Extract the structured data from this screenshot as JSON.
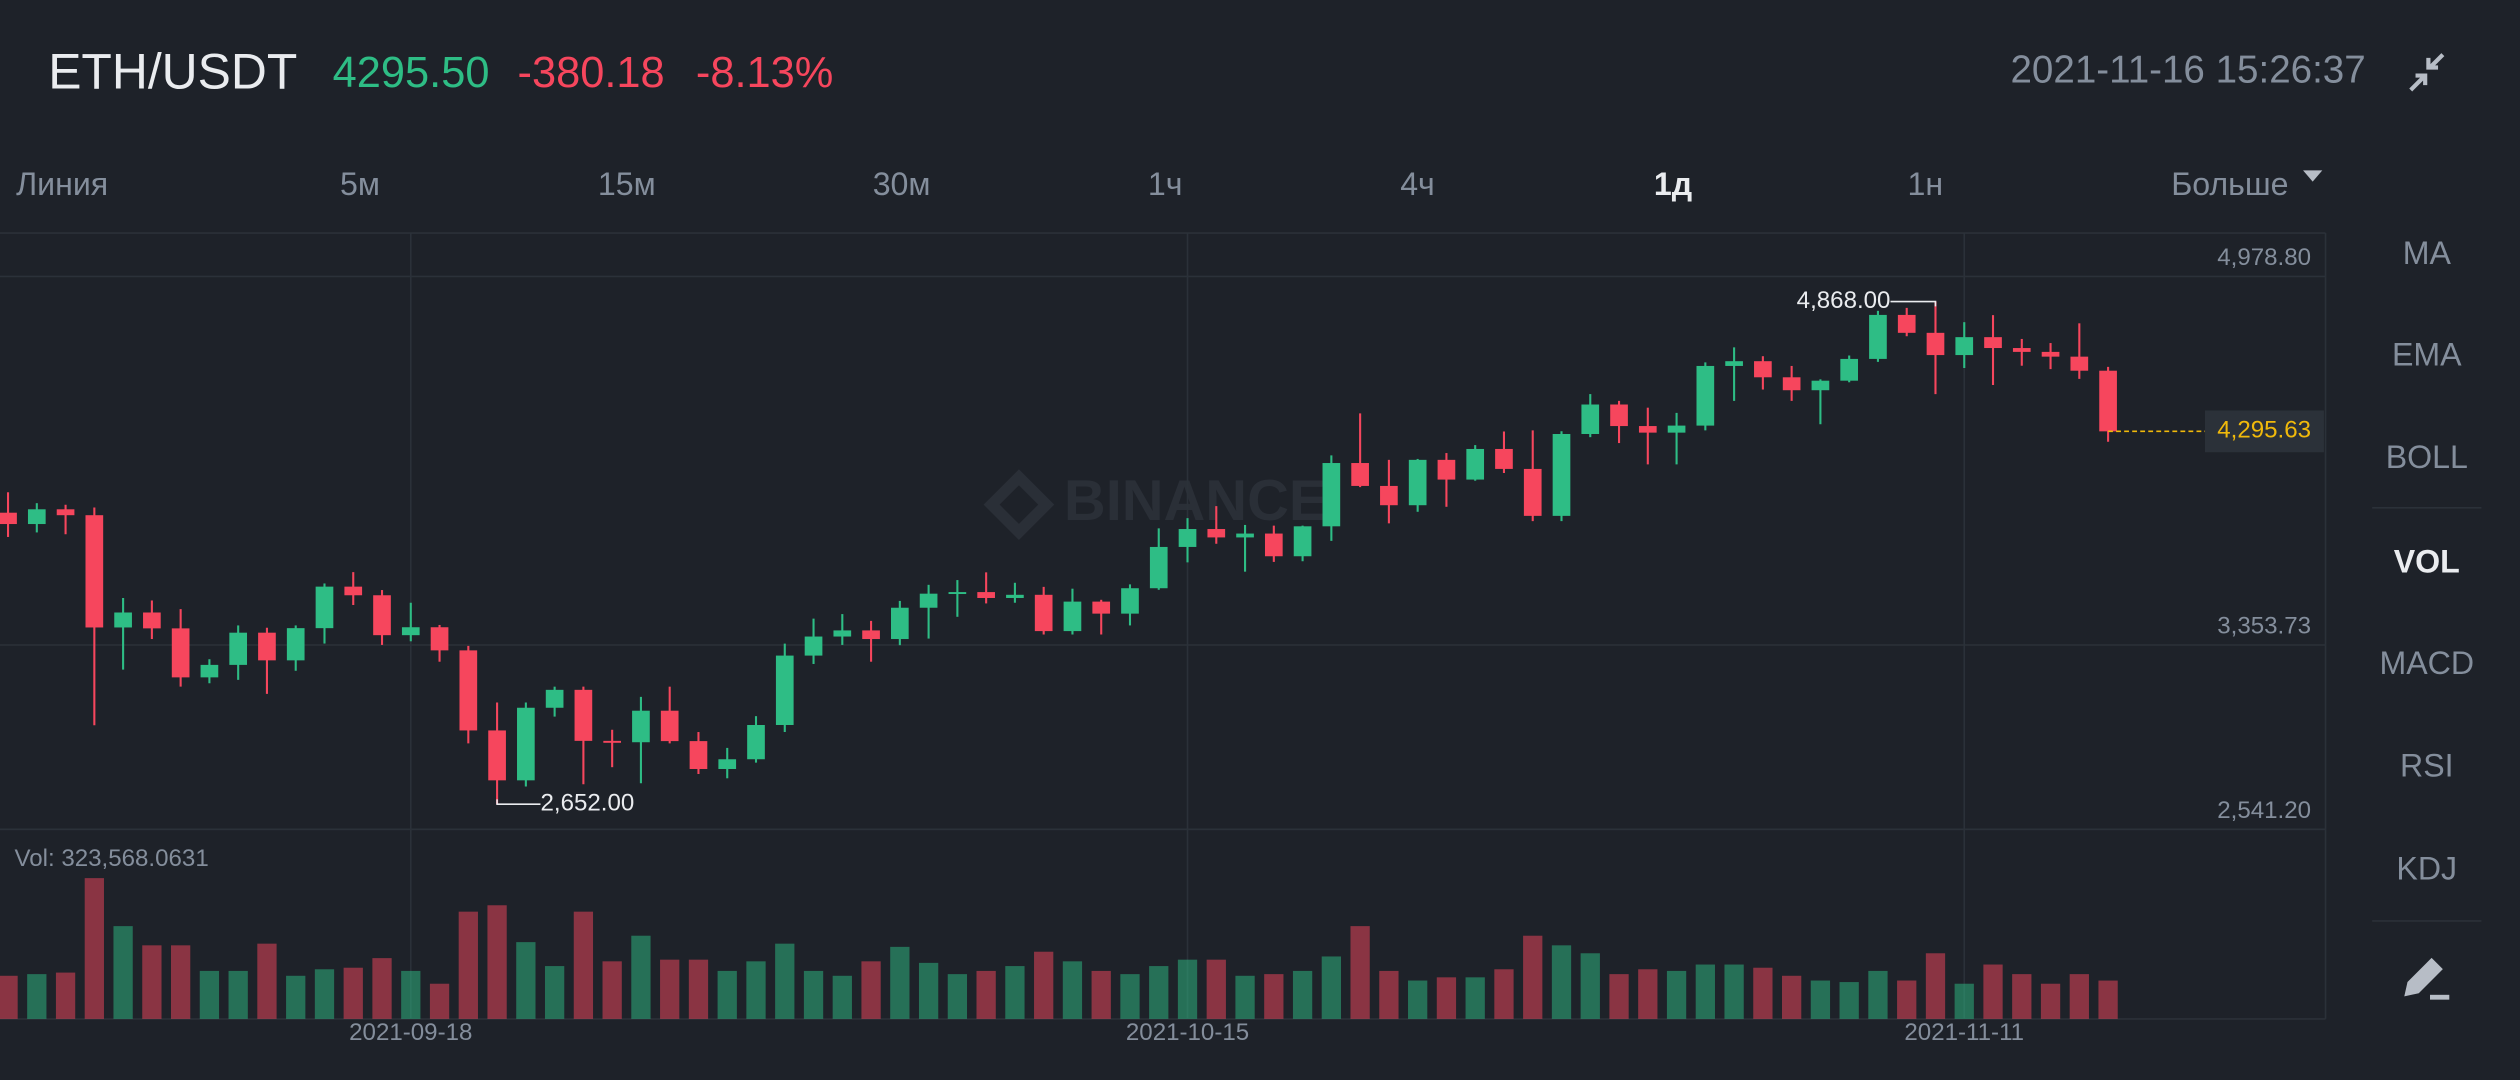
{
  "header": {
    "pair": "ETH/USDT",
    "price": "4295.50",
    "change": "-380.18",
    "change_pct": "-8.13%",
    "datetime": "2021-11-16 15:26:37"
  },
  "tabs": [
    "Линия",
    "5м",
    "15м",
    "30м",
    "1ч",
    "4ч",
    "1д",
    "1н",
    "Больше"
  ],
  "active_tab": 6,
  "indicators": [
    "MA",
    "EMA",
    "BOLL",
    "VOL",
    "MACD",
    "RSI",
    "KDJ"
  ],
  "active_indicator": 3,
  "chart_data": {
    "type": "candlestick",
    "watermark": "BINANCE",
    "categories": [
      null,
      null,
      null,
      null,
      null,
      null,
      null,
      null,
      null,
      null,
      null,
      null,
      null,
      null,
      "2021-09-18",
      null,
      null,
      null,
      null,
      null,
      null,
      null,
      null,
      null,
      null,
      null,
      null,
      null,
      null,
      null,
      null,
      null,
      null,
      null,
      null,
      null,
      null,
      null,
      null,
      null,
      null,
      "2021-10-15",
      null,
      null,
      null,
      null,
      null,
      null,
      null,
      null,
      null,
      null,
      null,
      null,
      null,
      null,
      null,
      null,
      null,
      null,
      null,
      null,
      null,
      null,
      null,
      null,
      null,
      null,
      "2021-11-11",
      null,
      null,
      null,
      null,
      null
    ],
    "open": [
      3937,
      3887,
      3952,
      3926,
      3431,
      3497,
      3427,
      3211,
      3266,
      3408,
      3286,
      3428,
      3611,
      3573,
      3397,
      3432,
      3330,
      2977,
      2757,
      3077,
      3156,
      2931,
      2925,
      3064,
      2930,
      2807,
      2850,
      3001,
      3307,
      3391,
      3418,
      3380,
      3518,
      3580,
      3587,
      3561,
      3575,
      3415,
      3545,
      3492,
      3604,
      3786,
      3865,
      3828,
      3845,
      3745,
      3877,
      4156,
      4055,
      3970,
      4170,
      4083,
      4218,
      4130,
      3923,
      4284,
      4414,
      4319,
      4290,
      4321,
      4584,
      4605,
      4534,
      4477,
      4519,
      4615,
      4809,
      4730,
      4632,
      4711,
      4663,
      4646,
      4625,
      4563
    ],
    "high": [
      4027,
      3979,
      3972,
      3960,
      3561,
      3550,
      3512,
      3291,
      3440,
      3430,
      3440,
      3625,
      3675,
      3596,
      3540,
      3442,
      3350,
      3100,
      3100,
      3170,
      3170,
      2980,
      3125,
      3170,
      2970,
      2900,
      3040,
      3360,
      3470,
      3490,
      3460,
      3548,
      3619,
      3640,
      3674,
      3628,
      3610,
      3602,
      3553,
      3621,
      3868,
      3913,
      3966,
      3883,
      3880,
      3880,
      4190,
      4375,
      4170,
      4174,
      4200,
      4235,
      4295,
      4300,
      4296,
      4460,
      4430,
      4400,
      4377,
      4600,
      4666,
      4627,
      4584,
      4525,
      4630,
      4827,
      4840,
      4868,
      4777,
      4808,
      4703,
      4685,
      4772,
      4580
    ],
    "low": [
      3830,
      3850,
      3842,
      3000,
      3245,
      3380,
      3170,
      3185,
      3200,
      3138,
      3240,
      3360,
      3530,
      3354,
      3370,
      3280,
      2920,
      2652,
      2730,
      3038,
      2740,
      2815,
      2744,
      2920,
      2785,
      2766,
      2835,
      2970,
      3270,
      3354,
      3280,
      3353,
      3382,
      3478,
      3537,
      3540,
      3400,
      3400,
      3400,
      3440,
      3597,
      3718,
      3800,
      3677,
      3720,
      3723,
      3813,
      4050,
      3890,
      3941,
      3963,
      4078,
      4112,
      3900,
      3900,
      4270,
      4244,
      4150,
      4150,
      4300,
      4430,
      4480,
      4430,
      4327,
      4512,
      4602,
      4715,
      4460,
      4575,
      4500,
      4585,
      4570,
      4527,
      4250
    ],
    "close": [
      3887,
      3952,
      3926,
      3431,
      3497,
      3427,
      3211,
      3266,
      3408,
      3286,
      3428,
      3611,
      3573,
      3397,
      3432,
      3330,
      2977,
      2757,
      3077,
      3156,
      2931,
      2925,
      3064,
      2930,
      2807,
      2850,
      3001,
      3307,
      3391,
      3418,
      3380,
      3518,
      3580,
      3587,
      3561,
      3575,
      3415,
      3545,
      3492,
      3604,
      3786,
      3865,
      3828,
      3845,
      3745,
      3877,
      4156,
      4055,
      3970,
      4170,
      4083,
      4218,
      4130,
      3923,
      4284,
      4414,
      4319,
      4290,
      4321,
      4584,
      4605,
      4534,
      4477,
      4519,
      4615,
      4809,
      4730,
      4632,
      4711,
      4663,
      4646,
      4625,
      4563,
      4295.63
    ],
    "volume": [
      364000,
      378000,
      391000,
      1188000,
      783000,
      621000,
      621000,
      405000,
      405000,
      635000,
      364000,
      419000,
      432000,
      513000,
      405000,
      297000,
      905000,
      959000,
      648000,
      446000,
      905000,
      486000,
      702000,
      500000,
      500000,
      405000,
      486000,
      635000,
      405000,
      364000,
      486000,
      608000,
      473000,
      378000,
      405000,
      446000,
      567000,
      486000,
      405000,
      378000,
      446000,
      500000,
      500000,
      364000,
      378000,
      405000,
      527000,
      783000,
      405000,
      324000,
      351000,
      351000,
      419000,
      702000,
      621000,
      554000,
      378000,
      419000,
      405000,
      459000,
      459000,
      432000,
      364000,
      324000,
      311000,
      405000,
      324000,
      554000,
      297000,
      459000,
      378000,
      297000,
      378000,
      323568.0631
    ],
    "volume_label": "Vol: 323,568.0631",
    "ylim": [
      2541.2,
      5170
    ],
    "volume_ylim": [
      0,
      1600000
    ],
    "yticks": [
      {
        "value": 2541.2,
        "label": "2,541.20"
      },
      {
        "value": 3353.73,
        "label": "3,353.73"
      },
      {
        "value": 4978.8,
        "label": "4,978.80"
      }
    ],
    "high_marker": {
      "value": 4868,
      "label": "4,868.00"
    },
    "low_marker": {
      "value": 2652,
      "label": "2,652.00"
    },
    "last_price": {
      "value": 4295.63,
      "label": "4,295.63"
    },
    "up_color": "#2ebd85",
    "down_color": "#f6465d",
    "grid": true
  }
}
